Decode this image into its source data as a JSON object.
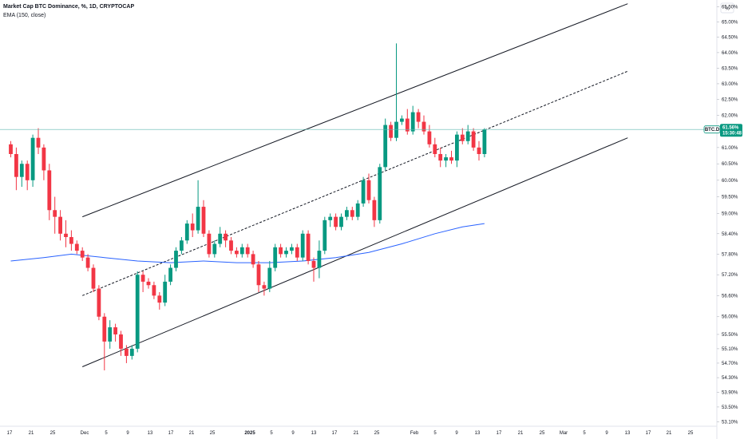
{
  "header": {
    "title": "Market Cap BTC Dominance, %, 1D, CRYPTOCAP",
    "ema_label": "EMA (150, close)"
  },
  "price_scale": {
    "unit_button": "%",
    "symbol": "BTC.D",
    "last_price": "61.56%",
    "countdown": "15:30:48"
  },
  "colors": {
    "up": "#089981",
    "down": "#f23645",
    "ema": "#2962ff",
    "channel": "#131722",
    "price_line": "#5fb8b0",
    "badge": "#089981"
  },
  "chart_data": {
    "type": "candlestick",
    "title": "Market Cap BTC Dominance, %, 1D, CRYPTOCAP",
    "scale": "log",
    "y_ticks": [
      "65.50%",
      "65.00%",
      "64.50%",
      "64.00%",
      "63.50%",
      "63.00%",
      "62.50%",
      "62.00%",
      "61.50%",
      "61.00%",
      "60.50%",
      "60.00%",
      "59.50%",
      "59.00%",
      "58.40%",
      "57.80%",
      "57.20%",
      "56.60%",
      "56.00%",
      "55.50%",
      "55.10%",
      "54.70%",
      "54.30%",
      "53.90%",
      "53.50%",
      "53.10%"
    ],
    "x_ticks": [
      {
        "label": "17",
        "bold": false
      },
      {
        "label": "21",
        "bold": false
      },
      {
        "label": "25",
        "bold": false
      },
      {
        "label": "Dec",
        "bold": false
      },
      {
        "label": "5",
        "bold": false
      },
      {
        "label": "9",
        "bold": false
      },
      {
        "label": "13",
        "bold": false
      },
      {
        "label": "17",
        "bold": false
      },
      {
        "label": "21",
        "bold": false
      },
      {
        "label": "25",
        "bold": false
      },
      {
        "label": "2025",
        "bold": true
      },
      {
        "label": "5",
        "bold": false
      },
      {
        "label": "9",
        "bold": false
      },
      {
        "label": "13",
        "bold": false
      },
      {
        "label": "17",
        "bold": false
      },
      {
        "label": "21",
        "bold": false
      },
      {
        "label": "25",
        "bold": false
      },
      {
        "label": "Feb",
        "bold": false
      },
      {
        "label": "5",
        "bold": false
      },
      {
        "label": "9",
        "bold": false
      },
      {
        "label": "13",
        "bold": false
      },
      {
        "label": "17",
        "bold": false
      },
      {
        "label": "21",
        "bold": false
      },
      {
        "label": "25",
        "bold": false
      },
      {
        "label": "Mar",
        "bold": false
      },
      {
        "label": "5",
        "bold": false
      },
      {
        "label": "9",
        "bold": false
      },
      {
        "label": "13",
        "bold": false
      },
      {
        "label": "17",
        "bold": false
      },
      {
        "label": "21",
        "bold": false
      },
      {
        "label": "25",
        "bold": false
      }
    ],
    "candles": [
      [
        61.1,
        61.2,
        60.7,
        60.8
      ],
      [
        60.8,
        61.0,
        59.7,
        60.1
      ],
      [
        60.1,
        60.6,
        59.8,
        60.5
      ],
      [
        60.5,
        60.6,
        59.7,
        60.0
      ],
      [
        60.0,
        61.4,
        59.8,
        61.3
      ],
      [
        61.3,
        61.6,
        60.8,
        61.0
      ],
      [
        61.0,
        61.1,
        60.0,
        60.3
      ],
      [
        60.3,
        60.5,
        58.8,
        59.1
      ],
      [
        59.1,
        59.5,
        58.4,
        58.9
      ],
      [
        58.9,
        59.1,
        58.2,
        58.4
      ],
      [
        58.4,
        58.8,
        58.0,
        58.3
      ],
      [
        58.3,
        58.5,
        57.9,
        58.1
      ],
      [
        58.1,
        58.2,
        57.8,
        57.9
      ],
      [
        57.9,
        58.0,
        57.6,
        57.7
      ],
      [
        57.7,
        57.8,
        57.3,
        57.4
      ],
      [
        57.4,
        57.5,
        56.7,
        56.8
      ],
      [
        56.8,
        56.9,
        55.9,
        56.0
      ],
      [
        56.0,
        56.1,
        54.5,
        55.3
      ],
      [
        55.3,
        55.9,
        55.1,
        55.7
      ],
      [
        55.7,
        55.8,
        55.3,
        55.5
      ],
      [
        55.5,
        55.6,
        54.9,
        55.1
      ],
      [
        55.1,
        55.2,
        54.7,
        54.9
      ],
      [
        54.9,
        55.2,
        54.8,
        55.1
      ],
      [
        55.1,
        57.3,
        55.0,
        57.2
      ],
      [
        57.2,
        57.3,
        56.7,
        57.0
      ],
      [
        57.0,
        57.1,
        56.8,
        56.9
      ],
      [
        56.9,
        57.0,
        56.5,
        56.6
      ],
      [
        56.6,
        56.7,
        56.2,
        56.4
      ],
      [
        56.4,
        57.2,
        56.3,
        57.0
      ],
      [
        57.0,
        57.5,
        56.9,
        57.4
      ],
      [
        57.4,
        58.0,
        57.3,
        57.9
      ],
      [
        57.9,
        58.3,
        57.8,
        58.2
      ],
      [
        58.2,
        58.8,
        58.1,
        58.7
      ],
      [
        58.7,
        59.0,
        58.3,
        58.5
      ],
      [
        58.5,
        60.0,
        58.4,
        59.2
      ],
      [
        59.2,
        59.4,
        58.3,
        58.4
      ],
      [
        58.4,
        58.5,
        57.7,
        57.8
      ],
      [
        57.8,
        58.2,
        57.7,
        58.1
      ],
      [
        58.1,
        58.6,
        58.0,
        58.4
      ],
      [
        58.4,
        58.5,
        58.0,
        58.2
      ],
      [
        58.2,
        58.3,
        57.8,
        57.9
      ],
      [
        57.9,
        58.0,
        57.7,
        57.8
      ],
      [
        57.8,
        58.1,
        57.7,
        58.0
      ],
      [
        58.0,
        58.1,
        57.7,
        57.8
      ],
      [
        57.8,
        57.9,
        57.4,
        57.5
      ],
      [
        57.5,
        57.6,
        56.7,
        56.9
      ],
      [
        56.9,
        57.0,
        56.6,
        56.8
      ],
      [
        56.8,
        57.6,
        56.7,
        57.4
      ],
      [
        57.4,
        58.1,
        57.3,
        58.0
      ],
      [
        58.0,
        58.1,
        57.7,
        57.8
      ],
      [
        57.8,
        58.0,
        57.7,
        57.9
      ],
      [
        57.9,
        58.1,
        57.8,
        58.0
      ],
      [
        58.0,
        58.1,
        57.6,
        57.7
      ],
      [
        57.7,
        58.5,
        57.6,
        58.4
      ],
      [
        58.4,
        58.5,
        57.5,
        57.6
      ],
      [
        57.6,
        57.7,
        57.0,
        57.4
      ],
      [
        57.4,
        58.2,
        57.1,
        57.9
      ],
      [
        57.9,
        58.9,
        57.8,
        58.8
      ],
      [
        58.8,
        59.0,
        58.6,
        58.9
      ],
      [
        58.9,
        59.0,
        58.5,
        58.6
      ],
      [
        58.6,
        59.0,
        58.5,
        58.9
      ],
      [
        58.9,
        59.2,
        58.8,
        59.1
      ],
      [
        59.1,
        59.2,
        58.8,
        58.9
      ],
      [
        58.9,
        59.4,
        58.8,
        59.3
      ],
      [
        59.3,
        60.1,
        59.2,
        60.0
      ],
      [
        60.0,
        60.2,
        59.3,
        59.4
      ],
      [
        59.4,
        59.5,
        58.6,
        58.8
      ],
      [
        58.8,
        60.5,
        58.7,
        60.4
      ],
      [
        60.4,
        61.9,
        60.3,
        61.7
      ],
      [
        61.7,
        61.8,
        61.2,
        61.3
      ],
      [
        61.3,
        64.3,
        61.2,
        61.8
      ],
      [
        61.8,
        62.0,
        61.7,
        61.9
      ],
      [
        61.9,
        62.2,
        61.4,
        61.5
      ],
      [
        61.5,
        62.3,
        61.4,
        62.1
      ],
      [
        62.1,
        62.2,
        61.6,
        61.8
      ],
      [
        61.8,
        62.0,
        61.4,
        61.5
      ],
      [
        61.5,
        61.7,
        61.0,
        61.1
      ],
      [
        61.1,
        61.3,
        60.7,
        60.8
      ],
      [
        60.8,
        61.0,
        60.4,
        60.6
      ],
      [
        60.6,
        60.8,
        60.4,
        60.7
      ],
      [
        60.7,
        60.9,
        60.5,
        60.6
      ],
      [
        60.6,
        61.5,
        60.4,
        61.4
      ],
      [
        61.4,
        61.6,
        61.1,
        61.2
      ],
      [
        61.2,
        61.7,
        61.1,
        61.5
      ],
      [
        61.5,
        61.6,
        60.9,
        61.0
      ],
      [
        61.0,
        61.2,
        60.6,
        60.8
      ],
      [
        60.8,
        61.6,
        60.7,
        61.56
      ]
    ],
    "ema": [
      [
        0,
        57.6
      ],
      [
        6,
        57.7
      ],
      [
        11,
        57.8
      ],
      [
        17,
        57.7
      ],
      [
        23,
        57.6
      ],
      [
        29,
        57.55
      ],
      [
        35,
        57.6
      ],
      [
        41,
        57.55
      ],
      [
        47,
        57.55
      ],
      [
        53,
        57.6
      ],
      [
        59,
        57.7
      ],
      [
        65,
        57.85
      ],
      [
        71,
        58.1
      ],
      [
        77,
        58.4
      ],
      [
        82,
        58.6
      ],
      [
        86,
        58.7
      ]
    ],
    "channel": {
      "upper": {
        "from": [
          13,
          58.9
        ],
        "to": [
          112,
          65.6
        ]
      },
      "middle": {
        "from": [
          13,
          56.6
        ],
        "to": [
          112,
          63.4
        ]
      },
      "lower": {
        "from": [
          13,
          54.6
        ],
        "to": [
          112,
          61.3
        ]
      }
    },
    "last_price": 61.56
  }
}
